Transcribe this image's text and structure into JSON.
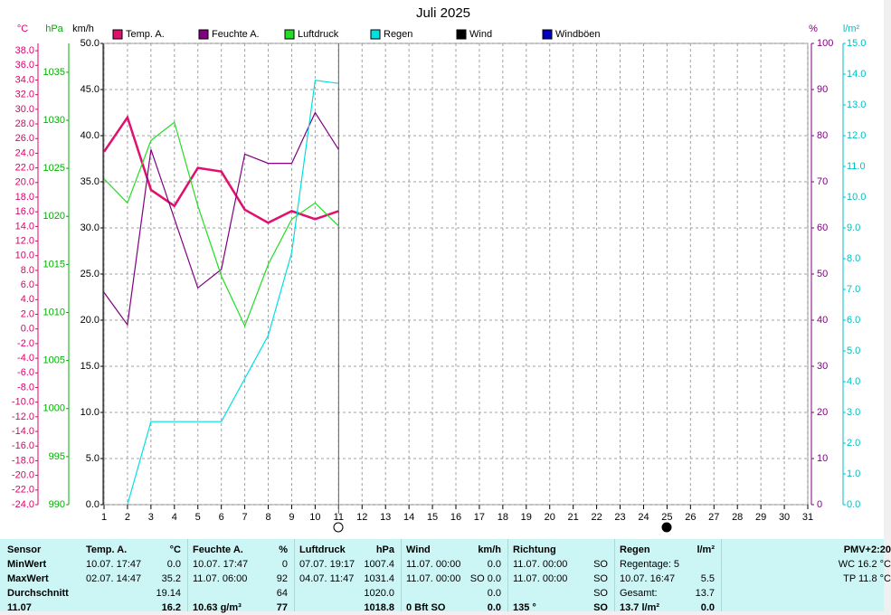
{
  "chart_data": {
    "type": "line",
    "title": "Juli 2025",
    "x": [
      1,
      2,
      3,
      4,
      5,
      6,
      7,
      8,
      9,
      10,
      11
    ],
    "xlim": [
      1,
      31
    ],
    "xticks": [
      1,
      2,
      3,
      4,
      5,
      6,
      7,
      8,
      9,
      10,
      11,
      12,
      13,
      14,
      15,
      16,
      17,
      18,
      19,
      20,
      21,
      22,
      23,
      24,
      25,
      26,
      27,
      28,
      29,
      30,
      31
    ],
    "grid": true,
    "axes": [
      {
        "label": "km/h",
        "color": "#000000",
        "lim": [
          0,
          50
        ],
        "ticks": [
          {
            "value": 0,
            "label": "0.0"
          },
          {
            "value": 5,
            "label": "5.0"
          },
          {
            "value": 10,
            "label": "10.0"
          },
          {
            "value": 15,
            "label": "15.0"
          },
          {
            "value": 20,
            "label": "20.0"
          },
          {
            "value": 25,
            "label": "25.0"
          },
          {
            "value": 30,
            "label": "30.0"
          },
          {
            "value": 35,
            "label": "35.0"
          },
          {
            "value": 40,
            "label": "40.0"
          },
          {
            "value": 45,
            "label": "45.0"
          },
          {
            "value": 50,
            "label": "50.0"
          }
        ]
      },
      {
        "label": "°C",
        "color": "#e0006e",
        "lim": [
          -24,
          39
        ],
        "ticks": [
          {
            "value": -24,
            "label": "-24.0"
          },
          {
            "value": -22,
            "label": "-22.0"
          },
          {
            "value": -20,
            "label": "-20.0"
          },
          {
            "value": -18,
            "label": "-18.0"
          },
          {
            "value": -16,
            "label": "-16.0"
          },
          {
            "value": -14,
            "label": "-14.0"
          },
          {
            "value": -12,
            "label": "-12.0"
          },
          {
            "value": -10,
            "label": "-10.0"
          },
          {
            "value": -8,
            "label": "-8.0"
          },
          {
            "value": -6,
            "label": "-6.0"
          },
          {
            "value": -4,
            "label": "-4.0"
          },
          {
            "value": -2,
            "label": "-2.0"
          },
          {
            "value": 0,
            "label": "0.0"
          },
          {
            "value": 2,
            "label": "2.0"
          },
          {
            "value": 4,
            "label": "4.0"
          },
          {
            "value": 6,
            "label": "6.0"
          },
          {
            "value": 8,
            "label": "8.0"
          },
          {
            "value": 10,
            "label": "10.0"
          },
          {
            "value": 12,
            "label": "12.0"
          },
          {
            "value": 14,
            "label": "14.0"
          },
          {
            "value": 16,
            "label": "16.0"
          },
          {
            "value": 18,
            "label": "18.0"
          },
          {
            "value": 20,
            "label": "20.0"
          },
          {
            "value": 22,
            "label": "22.0"
          },
          {
            "value": 24,
            "label": "24.0"
          },
          {
            "value": 26,
            "label": "26.0"
          },
          {
            "value": 28,
            "label": "28.0"
          },
          {
            "value": 30,
            "label": "30.0"
          },
          {
            "value": 32,
            "label": "32.0"
          },
          {
            "value": 34,
            "label": "34.0"
          },
          {
            "value": 36,
            "label": "36.0"
          },
          {
            "value": 38,
            "label": "38.0"
          }
        ]
      },
      {
        "label": "hPa",
        "color": "#00b000",
        "lim": [
          990,
          1038
        ],
        "ticks": [
          990,
          995,
          1000,
          1005,
          1010,
          1015,
          1020,
          1025,
          1030,
          1035
        ]
      },
      {
        "label": "%",
        "color": "#800080",
        "lim": [
          0,
          100
        ],
        "ticks": [
          0,
          10,
          20,
          30,
          40,
          50,
          60,
          70,
          80,
          90,
          100
        ]
      },
      {
        "label": "l/m²",
        "color": "#00c0c0",
        "lim": [
          0,
          15
        ],
        "ticks": [
          {
            "value": 0,
            "label": "0.0"
          },
          {
            "value": 1,
            "label": "1.0"
          },
          {
            "value": 2,
            "label": "2.0"
          },
          {
            "value": 3,
            "label": "3.0"
          },
          {
            "value": 4,
            "label": "4.0"
          },
          {
            "value": 5,
            "label": "5.0"
          },
          {
            "value": 6,
            "label": "6.0"
          },
          {
            "value": 7,
            "label": "7.0"
          },
          {
            "value": 8,
            "label": "8.0"
          },
          {
            "value": 9,
            "label": "9.0"
          },
          {
            "value": 10,
            "label": "10.0"
          },
          {
            "value": 11,
            "label": "11.0"
          },
          {
            "value": 12,
            "label": "12.0"
          },
          {
            "value": 13,
            "label": "13.0"
          },
          {
            "value": 14,
            "label": "14.0"
          },
          {
            "value": 15,
            "label": "15.0"
          }
        ]
      }
    ],
    "series": [
      {
        "name": "Temp. A.",
        "color": "#e0106e",
        "axis": 1,
        "values": [
          24.2,
          28.9,
          19.0,
          16.8,
          22.0,
          21.5,
          16.3,
          14.5,
          16.1,
          15.0,
          16.1
        ]
      },
      {
        "name": "Feuchte A.",
        "color": "#800080",
        "axis": 3,
        "values": [
          46,
          39,
          77,
          62,
          47,
          51,
          76,
          74,
          74,
          85,
          77
        ]
      },
      {
        "name": "Luftdruck",
        "color": "#22dd22",
        "axis": 2,
        "values": [
          1023.9,
          1021.4,
          1027.9,
          1029.8,
          1021.1,
          1013.8,
          1008.6,
          1015.0,
          1019.7,
          1021.4,
          1019.0
        ]
      },
      {
        "name": "Regen",
        "color": "#00e0e0",
        "axis": 4,
        "values": [
          null,
          0.0,
          2.7,
          2.7,
          2.7,
          2.7,
          4.1,
          5.5,
          8.2,
          13.8,
          13.7
        ]
      },
      {
        "name": "Wind",
        "color": "#000000",
        "axis": 0,
        "values": [
          null,
          null,
          null,
          null,
          null,
          null,
          null,
          null,
          null,
          null,
          null
        ]
      },
      {
        "name": "Windböen",
        "color": "#0000c0",
        "axis": 0,
        "values": [
          null,
          null,
          null,
          null,
          null,
          null,
          null,
          null,
          null,
          null,
          null
        ]
      }
    ]
  },
  "table": {
    "rows": [
      {
        "cells": [
          {
            "l": "Sensor"
          },
          {
            "l": "Temp. A.",
            "r": "°C"
          },
          {
            "l": "Feuchte A.",
            "r": "%"
          },
          {
            "l": "Luftdruck",
            "r": "hPa"
          },
          {
            "l": "Wind",
            "r": "km/h"
          },
          {
            "l": "Richtung"
          },
          {
            "l": "Regen",
            "r": "l/m²"
          },
          {
            "r": "PMV+2:20"
          }
        ]
      },
      {
        "cells": [
          {
            "l": "MinWert"
          },
          {
            "l": "10.07. 17:47",
            "r": "0.0"
          },
          {
            "l": "10.07. 17:47",
            "r": "0"
          },
          {
            "l": "07.07. 19:17",
            "r": "1007.4"
          },
          {
            "l": "11.07. 00:00",
            "r": "0.0"
          },
          {
            "l": "11.07. 00:00",
            "r": "SO"
          },
          {
            "l": "Regentage: 5"
          },
          {
            "r": "WC 16.2 °C"
          }
        ]
      },
      {
        "cells": [
          {
            "l": "MaxWert"
          },
          {
            "l": "02.07. 14:47",
            "r": "35.2"
          },
          {
            "l": "11.07. 06:00",
            "r": "92"
          },
          {
            "l": "04.07. 11:47",
            "r": "1031.4"
          },
          {
            "l": "11.07. 00:00",
            "r": "SO 0.0"
          },
          {
            "l": "11.07. 00:00",
            "r": "SO"
          },
          {
            "l": "10.07. 16:47",
            "r": "5.5"
          },
          {
            "r": "TP 11.8 °C"
          }
        ]
      },
      {
        "cells": [
          {
            "l": "Durchschnitt"
          },
          {
            "r": "19.14"
          },
          {
            "r": "64"
          },
          {
            "r": "1020.0"
          },
          {
            "r": "0.0"
          },
          {
            "r": "SO"
          },
          {
            "l": "Gesamt:",
            "r": "13.7"
          }
        ]
      },
      {
        "cells": [
          {
            "l": "11.07"
          },
          {
            "r": "16.2"
          },
          {
            "l": "10.63 g/m³",
            "r": "77"
          },
          {
            "r": "1018.8"
          },
          {
            "l": "0 Bft SO",
            "r": "0.0"
          },
          {
            "l": "135 °",
            "r": "SO"
          },
          {
            "l": "13.7 l/m²",
            "r": "0.0"
          }
        ]
      }
    ]
  }
}
